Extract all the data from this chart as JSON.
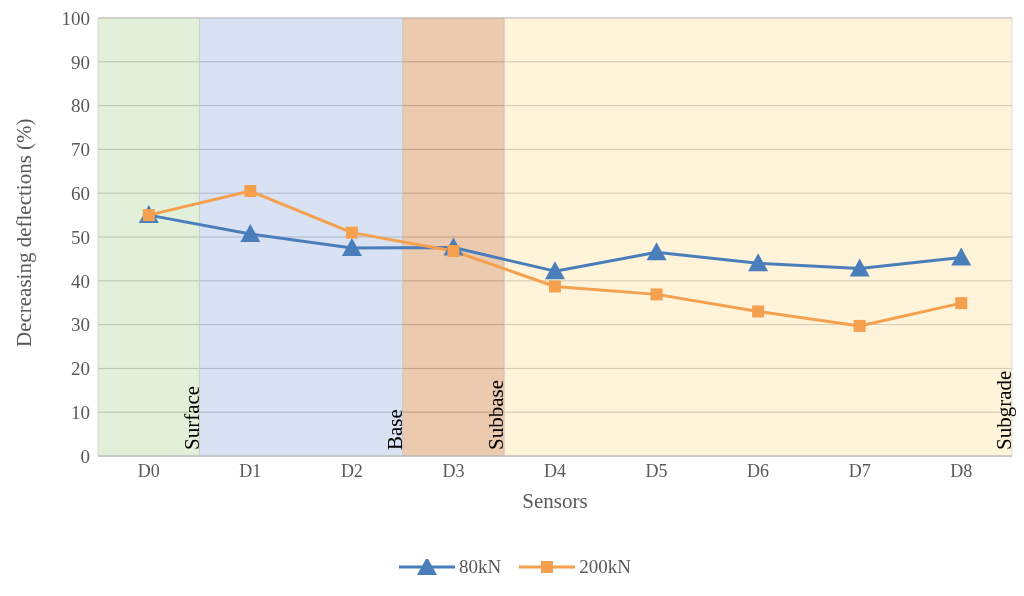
{
  "chart_data": {
    "type": "line",
    "xlabel": "Sensors",
    "ylabel": "Decreasing deflections (%)",
    "categories": [
      "D0",
      "D1",
      "D2",
      "D3",
      "D4",
      "D5",
      "D6",
      "D7",
      "D8"
    ],
    "series": [
      {
        "name": "80kN",
        "color": "#4a7ebb",
        "marker": "triangle",
        "values": [
          55,
          50.7,
          47.5,
          47.6,
          42.2,
          46.5,
          44,
          42.8,
          45.3
        ]
      },
      {
        "name": "200kN",
        "color": "#f4a04f",
        "marker": "square",
        "values": [
          55,
          60.5,
          51,
          46.8,
          38.7,
          36.9,
          33,
          29.7,
          34.9
        ]
      }
    ],
    "bands": [
      {
        "axis": "x",
        "from": "D0",
        "to": "D0",
        "label": "Surface",
        "color": "#c5e0b3"
      },
      {
        "axis": "x",
        "from": "D1",
        "to": "D2",
        "label": "Base",
        "color": "#b4c6e7"
      },
      {
        "axis": "x",
        "from": "D3",
        "to": "D3",
        "label": "Subbase",
        "color": "#d8955f"
      },
      {
        "axis": "x",
        "from": "D4",
        "to": "D8",
        "label": "Subgrade",
        "color": "#ffe8b3"
      }
    ],
    "ylim": [
      0,
      100
    ],
    "yticks": [
      0,
      10,
      20,
      30,
      40,
      50,
      60,
      70,
      80,
      90,
      100
    ],
    "grid": "y",
    "legend": "bottom",
    "line_style": "solid"
  }
}
